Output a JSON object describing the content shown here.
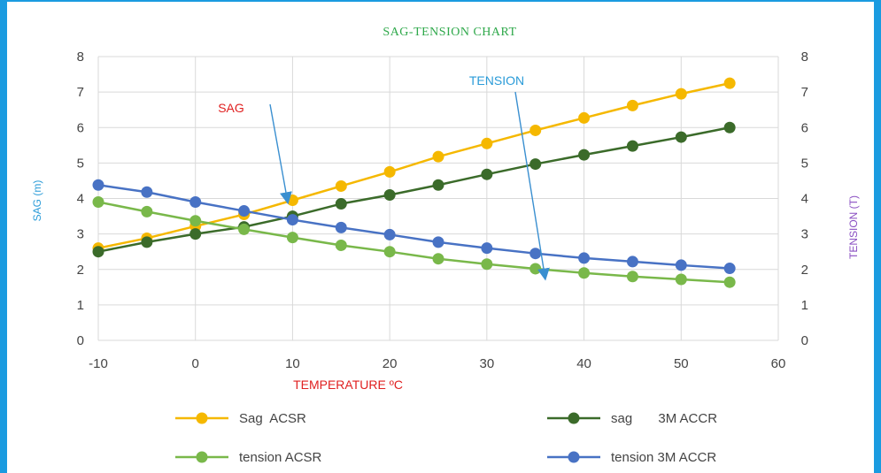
{
  "chart_data": {
    "type": "line",
    "title": "SAG-TENSION CHART",
    "xlabel": "TEMPERATURE ºC",
    "ylabel_left": "SAG (m)",
    "ylabel_right": "TENSION (T)",
    "xlim": [
      -10,
      60
    ],
    "ylim": [
      0,
      8
    ],
    "x_ticks": [
      "-10",
      "0",
      "10",
      "20",
      "30",
      "40",
      "50",
      "60"
    ],
    "y_ticks": [
      "0",
      "1",
      "2",
      "3",
      "4",
      "5",
      "6",
      "7",
      "8"
    ],
    "grid": true,
    "legend_position": "bottom",
    "x": [
      -10,
      -5,
      0,
      5,
      10,
      15,
      20,
      25,
      30,
      35,
      40,
      45,
      50,
      55
    ],
    "series": [
      {
        "name": "Sag  ACSR",
        "color": "#f5b800",
        "values": [
          2.6,
          2.88,
          3.22,
          3.55,
          3.95,
          4.35,
          4.75,
          5.18,
          5.55,
          5.92,
          6.27,
          6.62,
          6.95,
          7.25
        ]
      },
      {
        "name": "sag       3M ACCR",
        "color": "#3b6b2a",
        "values": [
          2.5,
          2.77,
          3.0,
          3.2,
          3.5,
          3.85,
          4.1,
          4.38,
          4.68,
          4.97,
          5.23,
          5.48,
          5.73,
          6.0
        ]
      },
      {
        "name": "tension ACSR",
        "color": "#79b84a",
        "values": [
          3.9,
          3.63,
          3.37,
          3.13,
          2.9,
          2.68,
          2.5,
          2.3,
          2.15,
          2.02,
          1.9,
          1.8,
          1.72,
          1.64
        ]
      },
      {
        "name": "tension 3M ACCR",
        "color": "#4872c4",
        "values": [
          4.38,
          4.18,
          3.9,
          3.65,
          3.4,
          3.18,
          2.98,
          2.77,
          2.6,
          2.45,
          2.32,
          2.22,
          2.12,
          2.03
        ]
      }
    ],
    "annotations": [
      {
        "text": "SAG",
        "color": "#e02020",
        "target": {
          "x": 9.5,
          "y": 3.9
        }
      },
      {
        "text": "TENSION",
        "color": "#2a9bd8",
        "target": {
          "x": 36,
          "y": 1.75
        }
      }
    ]
  }
}
